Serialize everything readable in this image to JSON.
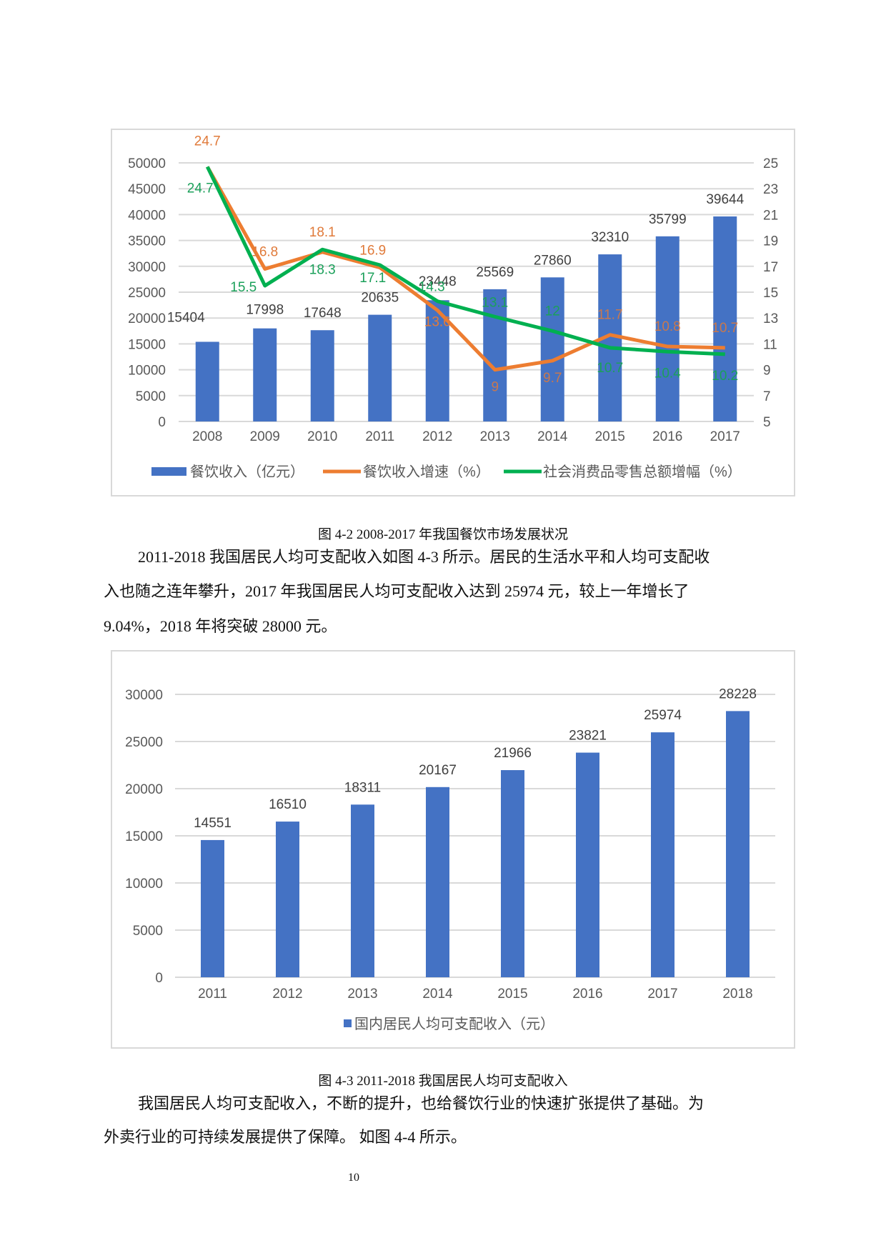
{
  "figures": [
    {
      "caption": "图 4-2 2008-2017 年我国餐饮市场发展状况"
    },
    {
      "caption": "图 4-3 2011-2018 我国居民人均可支配收入"
    }
  ],
  "paragraphs": {
    "p1": {
      "line1": "2011-2018 我国居民人均可支配收入如图 4-3 所示。居民的生活水平和人均可支配收",
      "line2": "入也随之连年攀升，2017 年我国居民人均可支配收入达到 25974 元，较上一年增长了",
      "line3": "9.04%，2018 年将突破 28000 元。"
    },
    "p2": {
      "line1": "我国居民人均可支配收入，不断的提升，也给餐饮行业的快速扩张提供了基础。为",
      "line2": "外卖行业的可持续发展提供了保障。  如图 4-4 所示。"
    }
  },
  "page_number": "10",
  "colors": {
    "bar": "#4472C4",
    "orange_line": "#ED7D31",
    "green_line": "#00B050",
    "grid": "#d9d9d9",
    "axis_text": "#595959"
  },
  "chart_data": [
    {
      "type": "bar+line",
      "title": "",
      "categories": [
        "2008",
        "2009",
        "2010",
        "2011",
        "2012",
        "2013",
        "2014",
        "2015",
        "2016",
        "2017"
      ],
      "series": [
        {
          "name": "餐饮收入（亿元）",
          "type": "bar",
          "axis": "left",
          "values": [
            15404,
            17998,
            17648,
            20635,
            23448,
            25569,
            27860,
            32310,
            35799,
            39644
          ]
        },
        {
          "name": "餐饮收入增速（%）",
          "type": "line",
          "axis": "right",
          "values": [
            24.7,
            16.8,
            18.1,
            16.9,
            13.6,
            9,
            9.7,
            11.7,
            10.8,
            10.7
          ]
        },
        {
          "name": "社会消费品零售总额增幅（%）",
          "type": "line",
          "axis": "right",
          "values": [
            24.7,
            15.5,
            18.3,
            17.1,
            14.3,
            13.1,
            12,
            10.7,
            10.4,
            10.2
          ]
        }
      ],
      "left_axis": {
        "min": 0,
        "max": 50000,
        "ticks": [
          0,
          5000,
          10000,
          15000,
          20000,
          25000,
          30000,
          35000,
          40000,
          45000,
          50000
        ]
      },
      "right_axis": {
        "min": 5,
        "max": 25,
        "ticks": [
          5,
          7,
          9,
          11,
          13,
          15,
          17,
          19,
          21,
          23,
          25
        ]
      },
      "grid": true,
      "legend_position": "bottom"
    },
    {
      "type": "bar",
      "title": "",
      "categories": [
        "2011",
        "2012",
        "2013",
        "2014",
        "2015",
        "2016",
        "2017",
        "2018"
      ],
      "series": [
        {
          "name": "国内居民人均可支配收入（元）",
          "values": [
            14551,
            16510,
            18311,
            20167,
            21966,
            23821,
            25974,
            28228
          ]
        }
      ],
      "ylim": [
        0,
        30000
      ],
      "yticks": [
        0,
        5000,
        10000,
        15000,
        20000,
        25000,
        30000
      ],
      "grid": true,
      "legend_position": "bottom"
    }
  ]
}
